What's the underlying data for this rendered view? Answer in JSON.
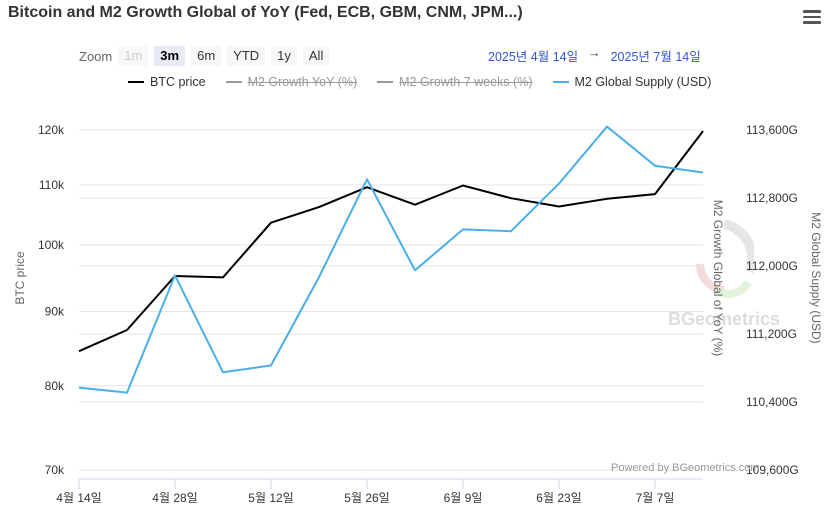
{
  "header": {
    "title": "Bitcoin and M2 Growth Global of YoY (Fed, ECB, GBM, CNM, JPM...)"
  },
  "zoom": {
    "label": "Zoom",
    "buttons": [
      {
        "label": "1m",
        "state": "disabled"
      },
      {
        "label": "3m",
        "state": "active"
      },
      {
        "label": "6m",
        "state": "normal"
      },
      {
        "label": "YTD",
        "state": "normal"
      },
      {
        "label": "1y",
        "state": "normal"
      },
      {
        "label": "All",
        "state": "normal"
      }
    ]
  },
  "range": {
    "from": "2025년 4월 14일",
    "arrow": "→",
    "to": "2025년 7월 14일"
  },
  "legend": {
    "items": [
      {
        "label": "BTC price",
        "color": "#000000",
        "hidden": false
      },
      {
        "label": "M2 Growth YoY (%)",
        "color": "#999999",
        "hidden": true
      },
      {
        "label": "M2 Growth 7 weeks (%)",
        "color": "#999999",
        "hidden": true
      },
      {
        "label": "M2 Global Supply (USD)",
        "color": "#4aaeea",
        "hidden": false
      }
    ]
  },
  "credits": "Powered by BGeometrics.com",
  "watermark": "BGeometrics",
  "chart_data": {
    "type": "line",
    "x": [
      "2025-04-14",
      "2025-04-21",
      "2025-04-28",
      "2025-05-05",
      "2025-05-12",
      "2025-05-19",
      "2025-05-26",
      "2025-06-02",
      "2025-06-09",
      "2025-06-16",
      "2025-06-23",
      "2025-06-30",
      "2025-07-07",
      "2025-07-14"
    ],
    "x_ticks": [
      {
        "date": "2025-04-14",
        "label": "4월 14일"
      },
      {
        "date": "2025-04-28",
        "label": "4월 28일"
      },
      {
        "date": "2025-05-12",
        "label": "5월 12일"
      },
      {
        "date": "2025-05-26",
        "label": "5월 26일"
      },
      {
        "date": "2025-06-09",
        "label": "6월 9일"
      },
      {
        "date": "2025-06-23",
        "label": "6월 23일"
      },
      {
        "date": "2025-07-07",
        "label": "7월 7일"
      }
    ],
    "series": [
      {
        "name": "BTC price",
        "axis": "left",
        "color": "#000000",
        "values": [
          84500,
          87400,
          95200,
          95000,
          103600,
          106200,
          109600,
          106600,
          109900,
          107700,
          106300,
          107600,
          108400,
          119800
        ]
      },
      {
        "name": "M2 Global Supply (USD)",
        "axis": "right",
        "color": "#4aaeea",
        "values": [
          110570,
          110510,
          111890,
          110750,
          110830,
          111870,
          113020,
          111950,
          112430,
          112410,
          112970,
          113640,
          113180,
          113100
        ]
      }
    ],
    "y_left": {
      "label": "BTC price",
      "log": true,
      "range": [
        70000,
        120000
      ],
      "ticks": [
        {
          "value": 70000,
          "label": "70k"
        },
        {
          "value": 80000,
          "label": "80k"
        },
        {
          "value": 90000,
          "label": "90k"
        },
        {
          "value": 100000,
          "label": "100k"
        },
        {
          "value": 110000,
          "label": "110k"
        },
        {
          "value": 120000,
          "label": "120k"
        }
      ]
    },
    "y_right_inner": {
      "label": "M2 Growth Global of YoY (%)"
    },
    "y_right": {
      "label": "M2 Global Supply (USD)",
      "range": [
        109600,
        113600
      ],
      "ticks": [
        {
          "value": 109600,
          "label": "109,600G"
        },
        {
          "value": 110400,
          "label": "110,400G"
        },
        {
          "value": 111200,
          "label": "111,200G"
        },
        {
          "value": 112000,
          "label": "112,000G"
        },
        {
          "value": 112800,
          "label": "112,800G"
        },
        {
          "value": 113600,
          "label": "113,600G"
        }
      ]
    },
    "grid": true
  }
}
